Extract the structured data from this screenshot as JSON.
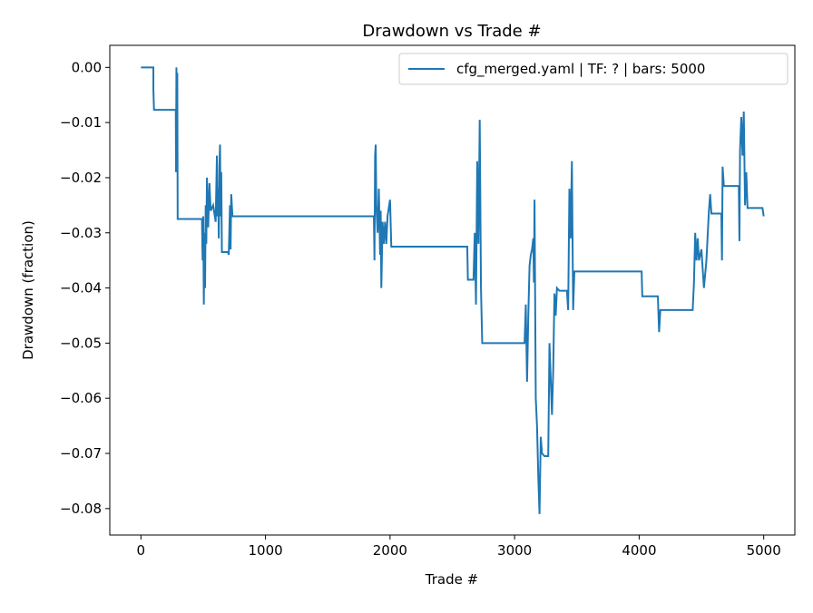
{
  "chart_data": {
    "type": "line",
    "title": "Drawdown vs Trade #",
    "xlabel": "Trade #",
    "ylabel": "Drawdown (fraction)",
    "x": [
      0,
      100,
      100,
      105,
      280,
      282,
      285,
      290,
      292,
      295,
      490,
      495,
      500,
      505,
      510,
      515,
      520,
      525,
      530,
      540,
      550,
      560,
      580,
      600,
      610,
      615,
      620,
      625,
      630,
      635,
      640,
      645,
      650,
      700,
      705,
      715,
      720,
      725,
      735,
      1870,
      1875,
      1880,
      1885,
      1890,
      1900,
      1910,
      1920,
      1925,
      1930,
      1940,
      1950,
      1960,
      1970,
      1980,
      2000,
      2010,
      2620,
      2625,
      2670,
      2680,
      2690,
      2700,
      2710,
      2720,
      2730,
      2740,
      3080,
      3090,
      3100,
      3110,
      3120,
      3130,
      3140,
      3150,
      3155,
      3160,
      3170,
      3180,
      3190,
      3200,
      3210,
      3220,
      3240,
      3270,
      3280,
      3300,
      3310,
      3320,
      3330,
      3340,
      3360,
      3420,
      3430,
      3440,
      3450,
      3460,
      3470,
      3480,
      4020,
      4025,
      4150,
      4160,
      4170,
      4430,
      4440,
      4450,
      4460,
      4470,
      4480,
      4500,
      4520,
      4540,
      4560,
      4570,
      4580,
      4660,
      4665,
      4670,
      4680,
      4800,
      4805,
      4810,
      4820,
      4830,
      4840,
      4850,
      4860,
      4870,
      4990,
      5000
    ],
    "series": [
      {
        "name": "cfg_merged.yaml | TF: ? | bars: 5000",
        "color": "#1f77b4",
        "values": [
          0,
          0,
          -0.004,
          -0.0077,
          -0.0077,
          -0.019,
          0,
          -0.018,
          -0.001,
          -0.0275,
          -0.0275,
          -0.035,
          -0.027,
          -0.043,
          -0.03,
          -0.04,
          -0.025,
          -0.032,
          -0.02,
          -0.029,
          -0.021,
          -0.026,
          -0.025,
          -0.028,
          -0.016,
          -0.027,
          -0.022,
          -0.031,
          -0.018,
          -0.014,
          -0.027,
          -0.019,
          -0.0335,
          -0.0335,
          -0.034,
          -0.025,
          -0.033,
          -0.023,
          -0.027,
          -0.027,
          -0.035,
          -0.016,
          -0.014,
          -0.025,
          -0.03,
          -0.022,
          -0.034,
          -0.026,
          -0.04,
          -0.028,
          -0.032,
          -0.028,
          -0.032,
          -0.027,
          -0.024,
          -0.0325,
          -0.0325,
          -0.0385,
          -0.0385,
          -0.03,
          -0.043,
          -0.017,
          -0.032,
          -0.0095,
          -0.04,
          -0.05,
          -0.05,
          -0.043,
          -0.057,
          -0.045,
          -0.036,
          -0.034,
          -0.033,
          -0.031,
          -0.039,
          -0.024,
          -0.06,
          -0.065,
          -0.074,
          -0.081,
          -0.067,
          -0.07,
          -0.0705,
          -0.0705,
          -0.05,
          -0.063,
          -0.055,
          -0.041,
          -0.045,
          -0.04,
          -0.0405,
          -0.0405,
          -0.044,
          -0.022,
          -0.031,
          -0.017,
          -0.044,
          -0.037,
          -0.037,
          -0.0415,
          -0.0415,
          -0.048,
          -0.044,
          -0.044,
          -0.039,
          -0.03,
          -0.035,
          -0.031,
          -0.035,
          -0.033,
          -0.04,
          -0.035,
          -0.026,
          -0.023,
          -0.0265,
          -0.0265,
          -0.035,
          -0.018,
          -0.0215,
          -0.0215,
          -0.0315,
          -0.015,
          -0.009,
          -0.016,
          -0.008,
          -0.025,
          -0.019,
          -0.0255,
          -0.0255,
          -0.027
        ]
      }
    ],
    "xlim": [
      -250,
      5250
    ],
    "xticks": [
      0,
      1000,
      2000,
      3000,
      4000,
      5000
    ],
    "ylim": [
      -0.0848,
      0.004
    ],
    "yticks": [
      {
        "value": 0,
        "label": "0.00"
      },
      {
        "value": -0.01,
        "label": "−0.01"
      },
      {
        "value": -0.02,
        "label": "−0.02"
      },
      {
        "value": -0.03,
        "label": "−0.03"
      },
      {
        "value": -0.04,
        "label": "−0.04"
      },
      {
        "value": -0.05,
        "label": "−0.05"
      },
      {
        "value": -0.06,
        "label": "−0.06"
      },
      {
        "value": -0.07,
        "label": "−0.07"
      },
      {
        "value": -0.08,
        "label": "−0.08"
      }
    ],
    "legend": "upper right",
    "grid": false
  }
}
